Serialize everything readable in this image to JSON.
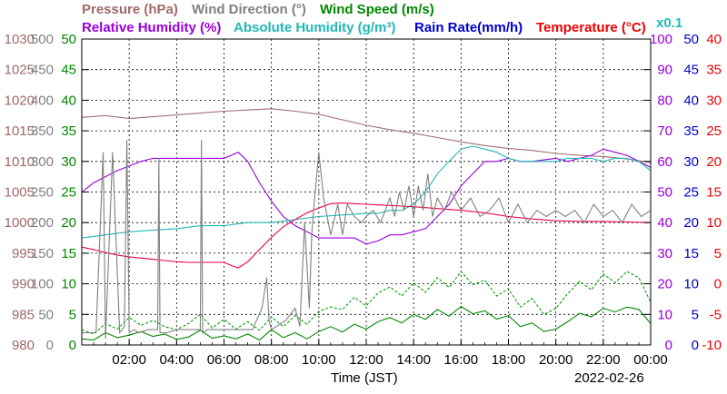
{
  "chart_data": {
    "type": "line",
    "titles": {
      "pressure": "Pressure (hPa)",
      "wind_dir": "Wind Direction (°)",
      "wind_speed": "Wind Speed (m/s)",
      "rh": "Relative Humidity (%)",
      "ah": "Absolute Humidity (g/m³)",
      "rain": "Rain Rate(mm/h)",
      "temp": "Temperature (°C)",
      "ah_scale": "x0.1"
    },
    "xlabel": "Time (JST)",
    "date": "2022-02-26",
    "x_range_hours": [
      0,
      24
    ],
    "x_ticks": [
      "02:00",
      "04:00",
      "06:00",
      "08:00",
      "10:00",
      "12:00",
      "14:00",
      "16:00",
      "18:00",
      "20:00",
      "22:00",
      "00:00"
    ],
    "axes": {
      "pressure": {
        "unit": "hPa",
        "range": [
          980,
          1030
        ],
        "ticks": [
          "980",
          "985",
          "990",
          "995",
          "1000",
          "1005",
          "1010",
          "1015",
          "1020",
          "1025",
          "1030"
        ],
        "color": "#a06868"
      },
      "wind_dir": {
        "unit": "°",
        "range": [
          0,
          500
        ],
        "ticks": [
          "0",
          "50",
          "100",
          "150",
          "200",
          "250",
          "300",
          "350",
          "400",
          "450",
          "500"
        ],
        "color": "#808080"
      },
      "wind_speed": {
        "unit": "m/s",
        "range": [
          0,
          50
        ],
        "ticks": [
          "0",
          "5",
          "10",
          "15",
          "20",
          "25",
          "30",
          "35",
          "40",
          "45",
          "50"
        ],
        "color": "#008800"
      },
      "rh": {
        "unit": "%",
        "range": [
          0,
          100
        ],
        "ticks": [
          "0",
          "10",
          "20",
          "30",
          "40",
          "50",
          "60",
          "70",
          "80",
          "90",
          "100"
        ],
        "color": "#9900dd"
      },
      "rain": {
        "unit": "mm/h",
        "range": [
          0,
          50
        ],
        "ticks": [
          "0",
          "5",
          "10",
          "15",
          "20",
          "25",
          "30",
          "35",
          "40",
          "45",
          "50"
        ],
        "color": "#0000cc"
      },
      "temp": {
        "unit": "°C",
        "range": [
          -10,
          40
        ],
        "ticks": [
          "-10",
          "-5",
          "0",
          "5",
          "10",
          "15",
          "20",
          "25",
          "30",
          "35",
          "40"
        ],
        "color": "#ee0000"
      }
    },
    "colors": {
      "pressure": "#a07070",
      "wind_dir": "#808080",
      "wind_speed": "#008800",
      "gust": "#00a000",
      "rh": "#9900dd",
      "ah": "#20b8b8",
      "rain": "#0000cc",
      "temp": "#ee0044"
    },
    "series": [
      {
        "name": "Pressure (hPa)",
        "axis": "pressure",
        "x": [
          0,
          1,
          2,
          3,
          4,
          5,
          6,
          7,
          8,
          9,
          10,
          11,
          12,
          13,
          14,
          15,
          16,
          17,
          18,
          19,
          20,
          21,
          22,
          23,
          24
        ],
        "values": [
          1017.2,
          1017.5,
          1017.0,
          1017.3,
          1017.6,
          1017.9,
          1018.2,
          1018.4,
          1018.6,
          1018.2,
          1017.7,
          1016.8,
          1015.9,
          1015.2,
          1014.6,
          1013.9,
          1013.2,
          1012.6,
          1012.1,
          1011.8,
          1011.3,
          1011.0,
          1010.8,
          1010.4,
          1009.8
        ]
      },
      {
        "name": "Relative Humidity (%)",
        "axis": "rh",
        "x": [
          0,
          0.5,
          1,
          1.5,
          2,
          2.5,
          3,
          3.5,
          4,
          4.5,
          5,
          5.5,
          6,
          6.3,
          6.6,
          7,
          7.5,
          8,
          8.5,
          9,
          9.5,
          10,
          10.5,
          11,
          11.5,
          12,
          12.5,
          13,
          13.5,
          14,
          14.5,
          15,
          15.5,
          16,
          16.5,
          17,
          17.5,
          18,
          18.5,
          19,
          19.5,
          20,
          20.5,
          21,
          21.5,
          22,
          22.5,
          23,
          23.5,
          24
        ],
        "values": [
          50,
          53,
          55,
          57,
          58.5,
          60,
          61,
          61,
          61,
          61,
          61,
          61,
          61,
          62,
          63,
          60,
          53,
          47,
          42,
          39,
          37,
          35,
          35,
          35,
          35,
          33,
          34,
          36,
          36,
          37,
          38,
          42,
          46,
          52,
          56,
          60,
          60,
          61,
          60,
          60,
          60.5,
          61,
          60,
          61,
          62,
          64,
          63,
          62,
          60,
          58
        ]
      },
      {
        "name": "Absolute Humidity (g/m³) x0.1",
        "axis": "rh",
        "x": [
          0,
          1,
          2,
          3,
          4,
          5,
          6,
          7,
          8,
          9,
          10,
          11,
          12,
          12.5,
          13,
          13.5,
          14,
          14.5,
          15,
          15.5,
          16,
          16.5,
          17,
          17.5,
          18,
          18.5,
          19,
          19.5,
          20,
          20.5,
          21,
          21.5,
          22,
          22.5,
          23,
          23.5,
          24
        ],
        "values": [
          35,
          36,
          37,
          37.5,
          38,
          39,
          39,
          40,
          40,
          41,
          42,
          42.5,
          43,
          43,
          44,
          44,
          46,
          50,
          56,
          60,
          64,
          65,
          64,
          63,
          61,
          60,
          60,
          60,
          60,
          61,
          61,
          61,
          60,
          61,
          61,
          60,
          57
        ]
      },
      {
        "name": "Temperature (°C)",
        "axis": "temp",
        "x": [
          0,
          0.5,
          1,
          1.5,
          2,
          2.5,
          3,
          3.5,
          4,
          4.5,
          5,
          5.5,
          6,
          6.3,
          6.6,
          7,
          7.5,
          8,
          8.5,
          9,
          9.5,
          10,
          10.5,
          11,
          11.5,
          12,
          12.5,
          13,
          13.5,
          14,
          15,
          16,
          17,
          18,
          19,
          20,
          21,
          22,
          23,
          24
        ],
        "values": [
          6.0,
          5.6,
          5.1,
          4.7,
          4.4,
          4.2,
          4.0,
          3.8,
          3.6,
          3.5,
          3.5,
          3.5,
          3.5,
          3.0,
          2.6,
          3.6,
          5.6,
          7.6,
          9.3,
          10.5,
          11.6,
          12.4,
          13.1,
          13.2,
          13.1,
          13.0,
          12.9,
          12.8,
          12.7,
          12.6,
          12.3,
          12.0,
          11.6,
          11.0,
          10.6,
          10.3,
          10.2,
          10.2,
          10.1,
          10.0
        ]
      },
      {
        "name": "Wind Speed (m/s)",
        "axis": "wind_speed",
        "x": [
          0,
          0.5,
          1,
          1.5,
          2,
          2.5,
          3,
          3.5,
          4,
          4.5,
          5,
          5.5,
          6,
          6.5,
          7,
          7.5,
          8,
          8.5,
          9,
          9.5,
          10,
          10.5,
          11,
          11.5,
          12,
          12.5,
          13,
          13.5,
          14,
          14.5,
          15,
          15.5,
          16,
          16.5,
          17,
          17.5,
          18,
          18.5,
          19,
          19.5,
          20,
          20.5,
          21,
          21.5,
          22,
          22.5,
          23,
          23.5,
          24
        ],
        "values": [
          1.0,
          0.8,
          2.0,
          1.2,
          1.6,
          2.2,
          1.4,
          1.8,
          0.9,
          1.3,
          2.4,
          1.1,
          1.5,
          1.0,
          1.8,
          0.8,
          2.5,
          1.2,
          2.0,
          1.0,
          2.2,
          3.0,
          2.1,
          3.4,
          2.6,
          3.8,
          4.5,
          3.6,
          5.0,
          4.2,
          5.8,
          4.7,
          6.3,
          5.1,
          5.6,
          4.2,
          4.8,
          3.0,
          3.6,
          2.2,
          2.6,
          3.8,
          5.2,
          4.6,
          6.0,
          5.4,
          6.2,
          5.8,
          3.5
        ]
      },
      {
        "name": "Gust (m/s)",
        "axis": "wind_speed",
        "x": [
          0,
          0.5,
          1,
          1.5,
          2,
          2.5,
          3,
          3.5,
          4,
          4.5,
          5,
          5.5,
          6,
          6.5,
          7,
          7.5,
          8,
          8.5,
          9,
          9.5,
          10,
          10.5,
          11,
          11.5,
          12,
          12.5,
          13,
          13.5,
          14,
          14.5,
          15,
          15.5,
          16,
          16.5,
          17,
          17.5,
          18,
          18.5,
          19,
          19.5,
          20,
          20.5,
          21,
          21.5,
          22,
          22.5,
          23,
          23.5,
          24
        ],
        "values": [
          2.5,
          1.8,
          3.5,
          2.6,
          4.5,
          3.2,
          4.0,
          3.0,
          2.5,
          3.5,
          5.0,
          2.8,
          4.2,
          2.6,
          3.8,
          2.4,
          4.6,
          3.0,
          4.8,
          3.4,
          5.5,
          6.2,
          5.8,
          7.8,
          6.4,
          8.5,
          9.5,
          8.0,
          10.2,
          8.6,
          11.0,
          9.4,
          12.0,
          9.8,
          10.6,
          8.0,
          9.2,
          6.2,
          7.6,
          5.0,
          6.0,
          8.4,
          10.4,
          9.0,
          11.6,
          10.2,
          12.0,
          11.0,
          7.0
        ]
      },
      {
        "name": "Wind Direction (°)",
        "axis": "wind_dir",
        "x": [
          0,
          0.6,
          0.9,
          1.0,
          1.3,
          1.6,
          1.8,
          1.9,
          2.0,
          2.2,
          2.4,
          2.8,
          3.2,
          3.25,
          3.3,
          3.6,
          4.0,
          4.4,
          4.8,
          5.0,
          5.05,
          5.1,
          5.3,
          5.8,
          6.2,
          6.8,
          7.2,
          7.6,
          7.8,
          7.9,
          8.0,
          8.2,
          8.6,
          9.0,
          9.2,
          9.4,
          9.6,
          9.7,
          9.8,
          10.0,
          10.2,
          10.5,
          10.8,
          11.0,
          11.2,
          11.5,
          11.8,
          12.0,
          12.3,
          12.6,
          13.0,
          13.2,
          13.4,
          13.6,
          13.8,
          14.0,
          14.2,
          14.4,
          14.6,
          14.8,
          15.0,
          15.3,
          15.6,
          16.0,
          16.4,
          16.8,
          17.2,
          17.6,
          18.0,
          18.4,
          18.8,
          19.2,
          19.6,
          20.0,
          20.4,
          20.8,
          21.2,
          21.6,
          22.0,
          22.4,
          22.8,
          23.2,
          23.6,
          24.0
        ],
        "values": [
          20,
          20,
          315,
          10,
          315,
          20,
          30,
          335,
          20,
          25,
          20,
          25,
          25,
          305,
          20,
          20,
          25,
          25,
          25,
          25,
          335,
          20,
          25,
          25,
          25,
          25,
          25,
          60,
          110,
          40,
          25,
          30,
          40,
          60,
          30,
          200,
          60,
          180,
          230,
          315,
          240,
          180,
          230,
          180,
          230,
          210,
          200,
          210,
          220,
          200,
          240,
          210,
          250,
          220,
          260,
          210,
          260,
          220,
          280,
          210,
          240,
          220,
          250,
          220,
          240,
          210,
          220,
          240,
          200,
          230,
          200,
          220,
          210,
          220,
          210,
          220,
          200,
          230,
          210,
          220,
          200,
          230,
          210,
          220
        ]
      },
      {
        "name": "Rain Rate(mm/h)",
        "axis": "rain",
        "x": [
          0,
          24
        ],
        "values": [
          0,
          0
        ]
      }
    ]
  }
}
